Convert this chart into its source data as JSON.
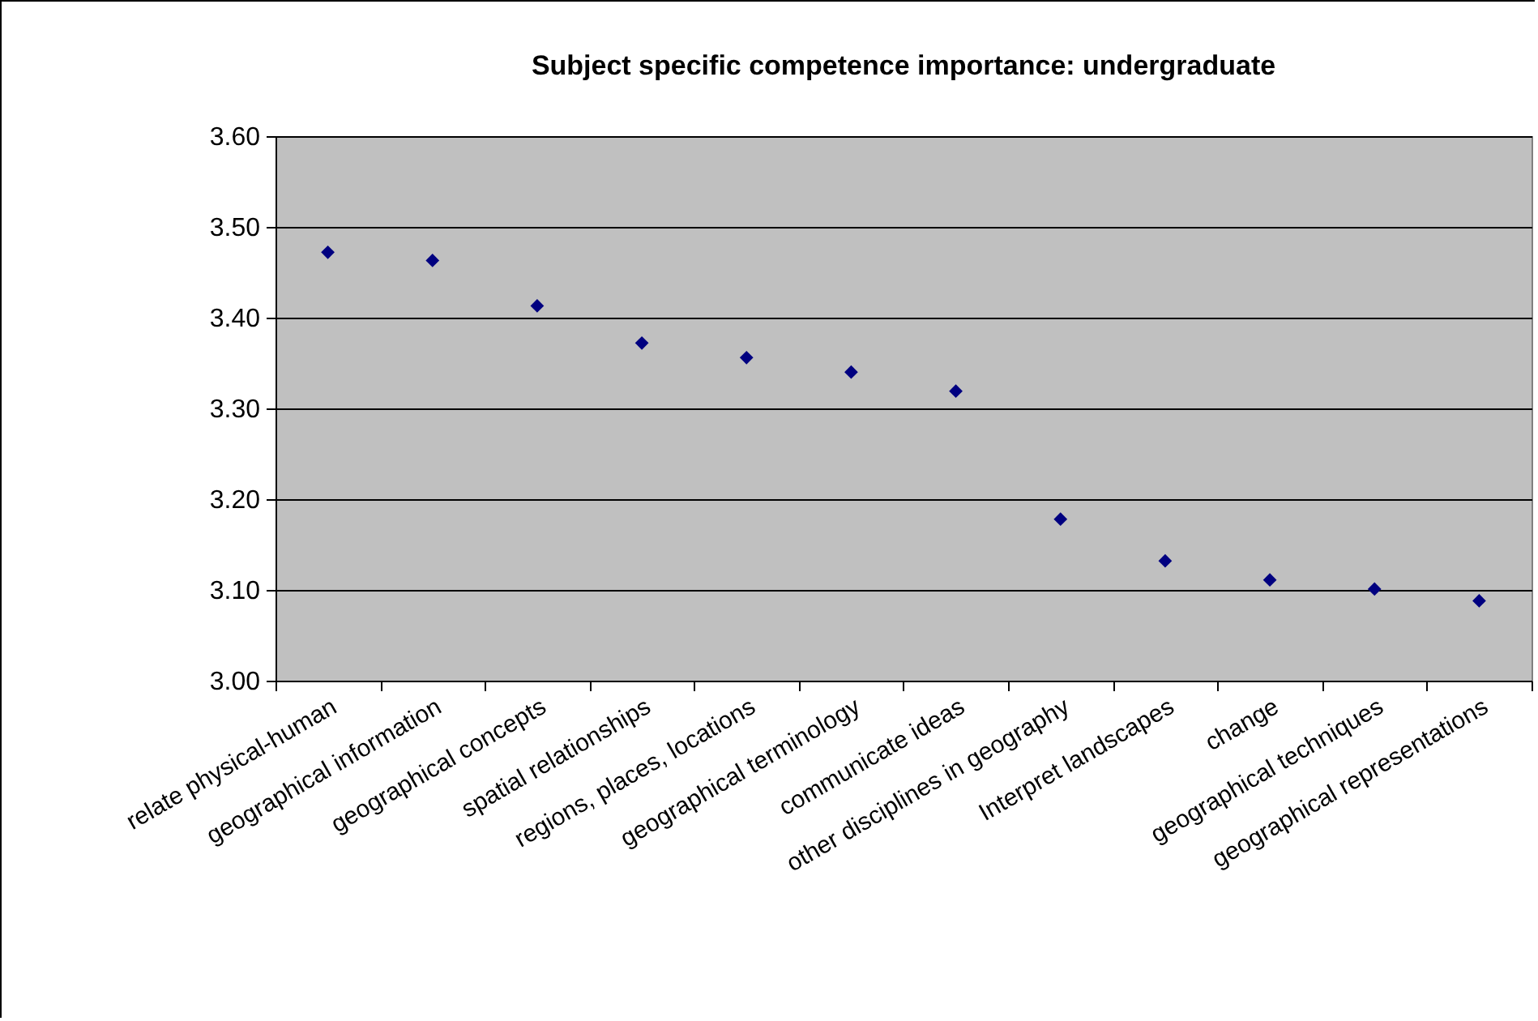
{
  "chart_data": {
    "type": "scatter",
    "title": "Subject specific competence importance: undergraduate",
    "categories": [
      "relate physical-human",
      "geographical information",
      "geographical concepts",
      "spatial relationships",
      "regions, places, locations",
      "geographical terminology",
      "communicate ideas",
      "other disciplines in geography",
      "Interpret landscapes",
      "change",
      "geographical techniques",
      "geographical representations"
    ],
    "series": [
      {
        "color": "#000080",
        "values": [
          3.472,
          3.463,
          3.413,
          3.372,
          3.356,
          3.34,
          3.319,
          3.178,
          3.132,
          3.111,
          3.101,
          3.088
        ]
      }
    ],
    "ylim": [
      3.0,
      3.6
    ],
    "yticks": [
      {
        "value": 3.0,
        "label": "3.00"
      },
      {
        "value": 3.1,
        "label": "3.10"
      },
      {
        "value": 3.2,
        "label": "3.20"
      },
      {
        "value": 3.3,
        "label": "3.30"
      },
      {
        "value": 3.4,
        "label": "3.40"
      },
      {
        "value": 3.5,
        "label": "3.50"
      },
      {
        "value": 3.6,
        "label": "3.60"
      }
    ],
    "grid": "y",
    "marker": "diamond"
  }
}
